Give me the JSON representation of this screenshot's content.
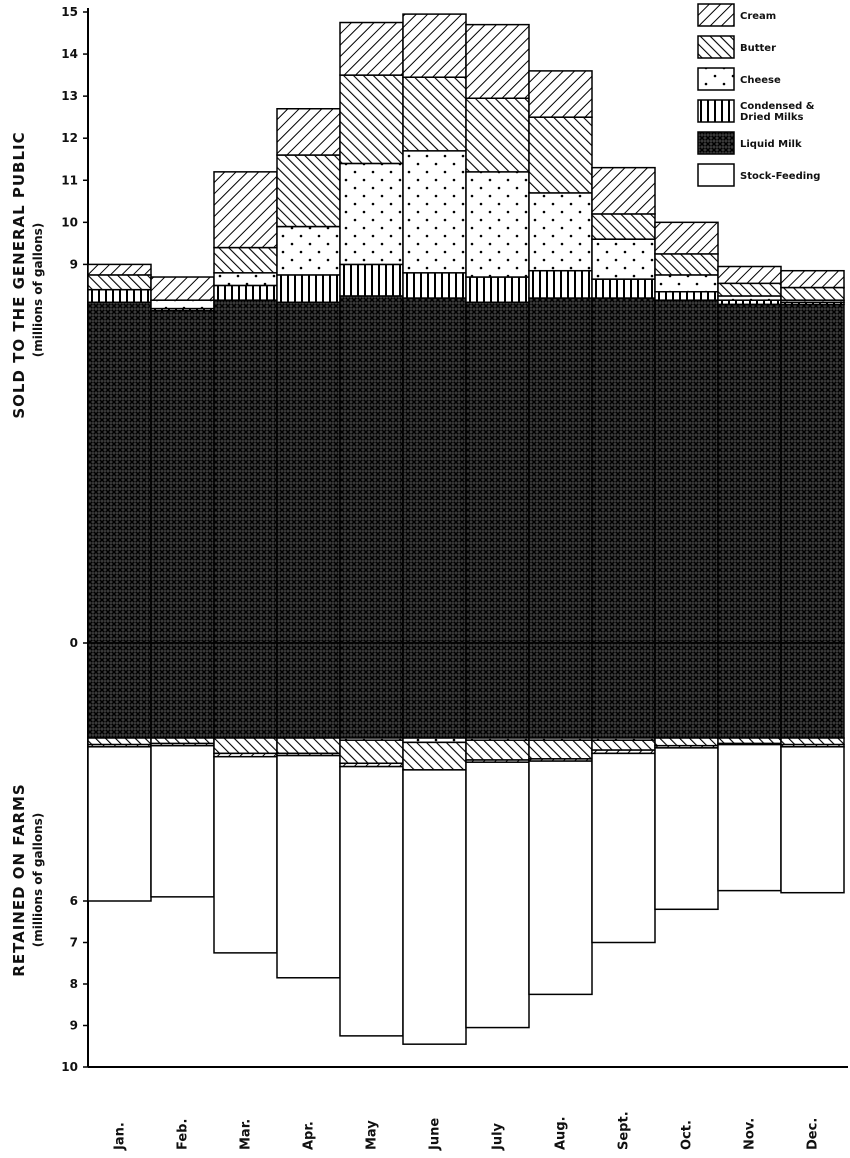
{
  "chart_data": {
    "type": "bar",
    "stacked": true,
    "upper_ylabel": "SOLD TO THE GENERAL PUBLIC",
    "upper_ylabel_sub": "(millions of gallons)",
    "lower_ylabel": "RETAINED ON FARMS",
    "lower_ylabel_sub": "(millions of gallons)",
    "categories": [
      "Jan.",
      "Feb.",
      "Mar.",
      "Apr.",
      "May",
      "June",
      "July",
      "Aug.",
      "Sept.",
      "Oct.",
      "Nov.",
      "Dec."
    ],
    "upper_ticks": [
      "0",
      "9",
      "10",
      "11",
      "12",
      "13",
      "14",
      "15"
    ],
    "lower_ticks": [
      "6",
      "7",
      "8",
      "9",
      "10"
    ],
    "legend": [
      {
        "key": "cream",
        "label": "Cream"
      },
      {
        "key": "butter",
        "label": "Butter"
      },
      {
        "key": "cheese",
        "label": "Cheese"
      },
      {
        "key": "condensed",
        "label": "Condensed & Dried Milks"
      },
      {
        "key": "liquid",
        "label": "Liquid Milk"
      },
      {
        "key": "stock",
        "label": "Stock-Feeding"
      }
    ],
    "sold_to_public_top": [
      9.0,
      8.7,
      11.2,
      12.7,
      14.75,
      14.95,
      14.7,
      13.6,
      11.3,
      10.0,
      8.95,
      8.85
    ],
    "sold_series": [
      {
        "key": "liquid",
        "values": [
          8.1,
          7.9,
          8.15,
          8.1,
          8.25,
          8.2,
          8.1,
          8.2,
          8.2,
          8.15,
          8.05,
          8.05
        ]
      },
      {
        "key": "condensed",
        "values": [
          0.3,
          0.05,
          0.35,
          0.65,
          0.75,
          0.6,
          0.6,
          0.65,
          0.45,
          0.2,
          0.1,
          0.05
        ]
      },
      {
        "key": "cheese",
        "values": [
          0.0,
          0.2,
          0.3,
          1.15,
          2.4,
          2.9,
          2.5,
          1.85,
          0.95,
          0.4,
          0.1,
          0.05
        ]
      },
      {
        "key": "butter",
        "values": [
          0.35,
          0.0,
          0.6,
          1.7,
          2.1,
          1.75,
          1.75,
          1.8,
          0.6,
          0.5,
          0.3,
          0.3
        ]
      },
      {
        "key": "cream",
        "values": [
          0.25,
          0.55,
          1.8,
          1.1,
          1.25,
          1.5,
          1.75,
          1.1,
          1.1,
          0.75,
          0.4,
          0.4
        ]
      }
    ],
    "retained_on_farms_total": [
      6.0,
      5.9,
      7.25,
      7.85,
      9.25,
      9.45,
      9.05,
      8.25,
      7.0,
      6.2,
      5.75,
      5.8
    ],
    "retained_series": [
      {
        "key": "liquid",
        "values": [
          0.0,
          0.0,
          0.0,
          0.0,
          0.0,
          0.0,
          0.0,
          0.0,
          0.0,
          0.0,
          0.0,
          0.0
        ]
      },
      {
        "key": "condensed",
        "values": [
          0.0,
          0.0,
          0.0,
          0.0,
          0.0,
          0.0,
          0.0,
          0.0,
          0.0,
          0.0,
          0.0,
          0.0
        ]
      },
      {
        "key": "cheese",
        "values": [
          0.0,
          0.0,
          0.0,
          0.0,
          0.1,
          0.2,
          0.1,
          0.1,
          0.1,
          0.0,
          0.0,
          0.0
        ]
      },
      {
        "key": "butter",
        "values": [
          0.3,
          0.25,
          0.7,
          0.7,
          1.05,
          1.25,
          0.9,
          0.85,
          0.45,
          0.35,
          0.25,
          0.3
        ]
      },
      {
        "key": "cream",
        "values": [
          0.1,
          0.1,
          0.15,
          0.1,
          0.15,
          0.0,
          0.1,
          0.1,
          0.15,
          0.1,
          0.05,
          0.1
        ]
      },
      {
        "key": "stock",
        "values": [
          5.6,
          5.55,
          6.4,
          7.05,
          8.0,
          8.0,
          7.95,
          7.2,
          6.3,
          5.75,
          5.45,
          5.4
        ]
      }
    ],
    "grid": false,
    "legend_position": "top-right"
  }
}
